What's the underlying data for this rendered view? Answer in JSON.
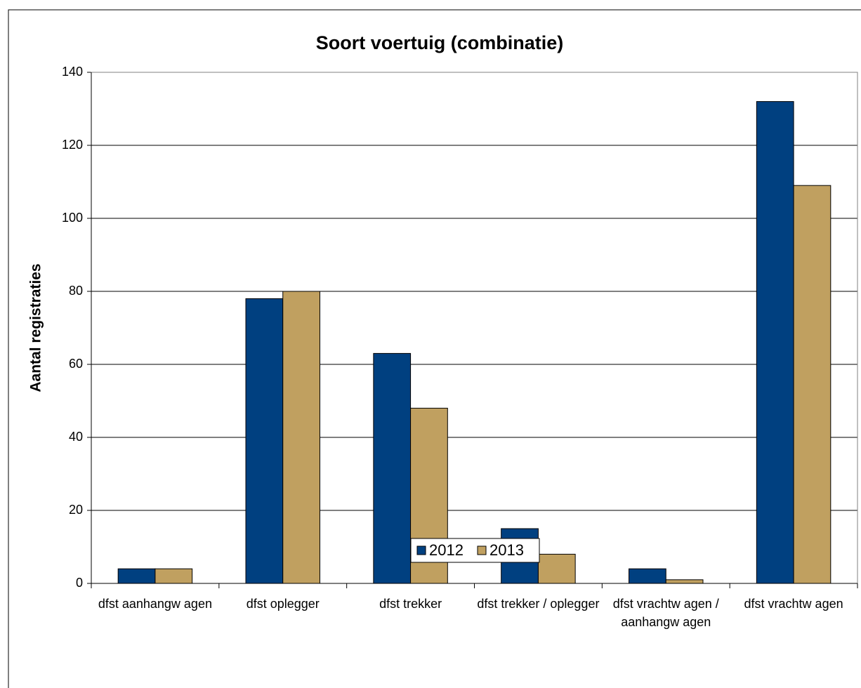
{
  "chart_data": {
    "type": "bar",
    "title": "Soort voertuig (combinatie)",
    "y_label": "Aantal registraties",
    "categories": [
      "dfst aanhangw agen",
      "dfst oplegger",
      "dfst trekker",
      "dfst trekker / oplegger",
      "dfst vrachtw agen / aanhangw agen",
      "dfst vrachtw agen"
    ],
    "series": [
      {
        "name": "2012",
        "color": "#004080",
        "values": [
          4,
          78,
          63,
          15,
          4,
          132
        ]
      },
      {
        "name": "2013",
        "color": "#c0a060",
        "values": [
          4,
          80,
          48,
          8,
          1,
          109
        ]
      }
    ],
    "ylim": [
      0,
      140
    ],
    "yticks": [
      0,
      20,
      40,
      60,
      80,
      100,
      120,
      140
    ],
    "grid": true,
    "legend": "bottom"
  }
}
